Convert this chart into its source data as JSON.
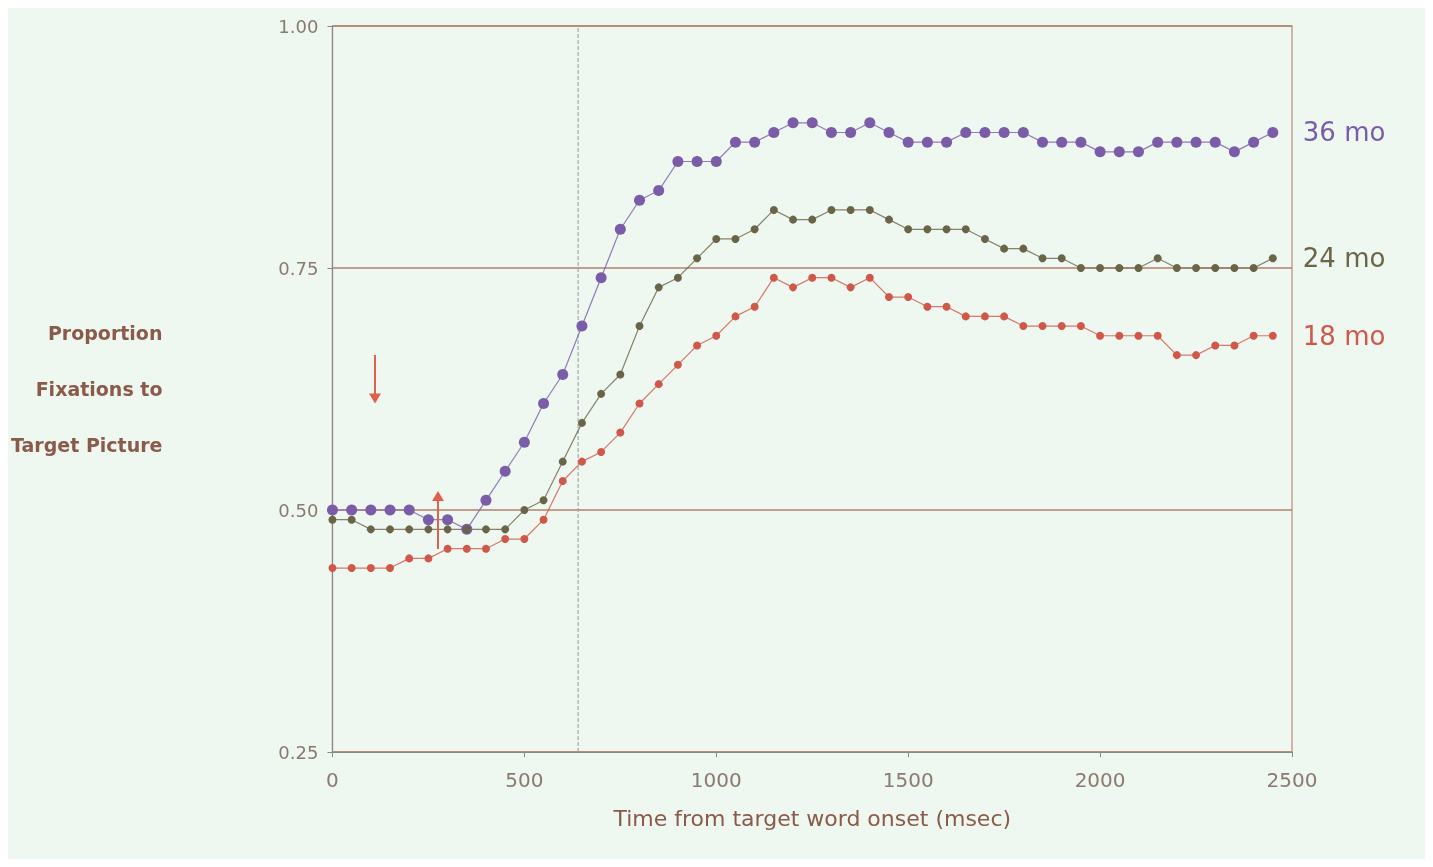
{
  "chart_data": {
    "type": "line",
    "xlabel": "Time from target word onset (msec)",
    "ylabel": "Proportion\nFixations to\nTarget Picture",
    "x": [
      0,
      50,
      100,
      150,
      200,
      250,
      300,
      350,
      400,
      450,
      500,
      550,
      600,
      650,
      700,
      750,
      800,
      850,
      900,
      950,
      1000,
      1050,
      1100,
      1150,
      1200,
      1250,
      1300,
      1350,
      1400,
      1450,
      1500,
      1550,
      1600,
      1650,
      1700,
      1750,
      1800,
      1850,
      1900,
      1950,
      2000,
      2050,
      2100,
      2150,
      2200,
      2250,
      2300,
      2350,
      2400,
      2450
    ],
    "series": [
      {
        "name": "36 mo",
        "color": "#7b5ca8",
        "values": [
          0.5,
          0.5,
          0.5,
          0.5,
          0.5,
          0.49,
          0.49,
          0.48,
          0.51,
          0.54,
          0.57,
          0.61,
          0.64,
          0.69,
          0.74,
          0.79,
          0.82,
          0.83,
          0.86,
          0.86,
          0.86,
          0.88,
          0.88,
          0.89,
          0.9,
          0.9,
          0.89,
          0.89,
          0.9,
          0.89,
          0.88,
          0.88,
          0.88,
          0.89,
          0.89,
          0.89,
          0.89,
          0.88,
          0.88,
          0.88,
          0.87,
          0.87,
          0.87,
          0.88,
          0.88,
          0.88,
          0.88,
          0.87,
          0.88,
          0.89
        ]
      },
      {
        "name": "24 mo",
        "color": "#6b6548",
        "values": [
          0.49,
          0.49,
          0.48,
          0.48,
          0.48,
          0.48,
          0.48,
          0.48,
          0.48,
          0.48,
          0.5,
          0.51,
          0.55,
          0.59,
          0.62,
          0.64,
          0.69,
          0.73,
          0.74,
          0.76,
          0.78,
          0.78,
          0.79,
          0.81,
          0.8,
          0.8,
          0.81,
          0.81,
          0.81,
          0.8,
          0.79,
          0.79,
          0.79,
          0.79,
          0.78,
          0.77,
          0.77,
          0.76,
          0.76,
          0.75,
          0.75,
          0.75,
          0.75,
          0.76,
          0.75,
          0.75,
          0.75,
          0.75,
          0.75,
          0.76
        ]
      },
      {
        "name": "18 mo",
        "color": "#d0584a",
        "values": [
          0.44,
          0.44,
          0.44,
          0.44,
          0.45,
          0.45,
          0.46,
          0.46,
          0.46,
          0.47,
          0.47,
          0.49,
          0.53,
          0.55,
          0.56,
          0.58,
          0.61,
          0.63,
          0.65,
          0.67,
          0.68,
          0.7,
          0.71,
          0.74,
          0.73,
          0.74,
          0.74,
          0.73,
          0.74,
          0.72,
          0.72,
          0.71,
          0.71,
          0.7,
          0.7,
          0.7,
          0.69,
          0.69,
          0.69,
          0.69,
          0.68,
          0.68,
          0.68,
          0.68,
          0.66,
          0.66,
          0.67,
          0.67,
          0.68,
          0.68
        ]
      }
    ],
    "xlim": [
      0,
      2500
    ],
    "xticks": [
      0,
      500,
      1000,
      1500,
      2000,
      2500
    ],
    "ylim": [
      0.25,
      1.0
    ],
    "yticks": [
      {
        "value": 0.25,
        "label": "0.25"
      },
      {
        "value": 0.5,
        "label": "0.50"
      },
      {
        "value": 0.75,
        "label": "0.75"
      },
      {
        "value": 1,
        "label": "1.00"
      }
    ],
    "ref_lines": [
      {
        "axis": "x",
        "value": 640,
        "line_style": "dashed"
      }
    ],
    "grid": "y",
    "marker": "circle",
    "line_style": "solid",
    "legend": false
  }
}
